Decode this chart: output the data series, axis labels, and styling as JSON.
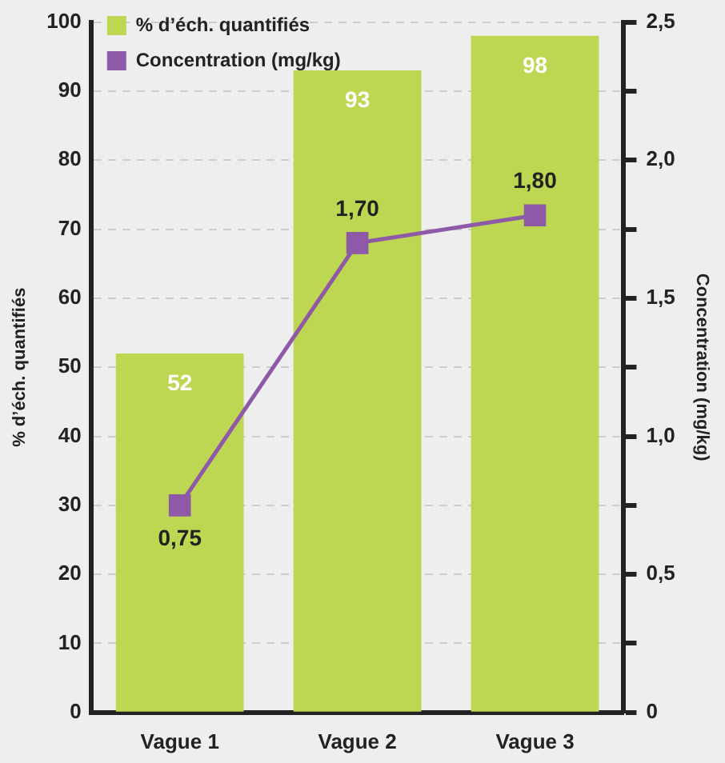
{
  "chart_data": {
    "type": "bar",
    "categories": [
      "Vague 1",
      "Vague 2",
      "Vague 3"
    ],
    "ylabel": "% d’éch. quantifiés",
    "y2label": "Concentration (mg/kg)",
    "ylim": [
      0,
      100
    ],
    "yticks": [
      0,
      10,
      20,
      30,
      40,
      50,
      60,
      70,
      80,
      90,
      100
    ],
    "y2lim": [
      0,
      2.5
    ],
    "y2ticks": [
      {
        "value": 0,
        "label": "0"
      },
      {
        "value": 0.25,
        "label": null
      },
      {
        "value": 0.5,
        "label": "0,5"
      },
      {
        "value": 0.75,
        "label": null
      },
      {
        "value": 1,
        "label": "1,0"
      },
      {
        "value": 1.25,
        "label": null
      },
      {
        "value": 1.5,
        "label": "1,5"
      },
      {
        "value": 1.75,
        "label": null
      },
      {
        "value": 2,
        "label": "2,0"
      },
      {
        "value": 2.25,
        "label": null
      },
      {
        "value": 2.5,
        "label": "2,5"
      }
    ],
    "grid": "y",
    "legend": "top left",
    "series": [
      {
        "name": "% d’éch. quantifiés",
        "color": "#bdd753",
        "values": [
          52,
          93,
          98
        ],
        "value_labels": [
          "52",
          "93",
          "98"
        ]
      },
      {
        "name": "Concentration (mg/kg)",
        "type": "line",
        "axis": "y2",
        "color": "#8e5aa8",
        "marker": "square",
        "values": [
          0.75,
          1.7,
          1.8
        ],
        "value_labels": [
          "0,75",
          "1,70",
          "1,80"
        ]
      }
    ]
  }
}
